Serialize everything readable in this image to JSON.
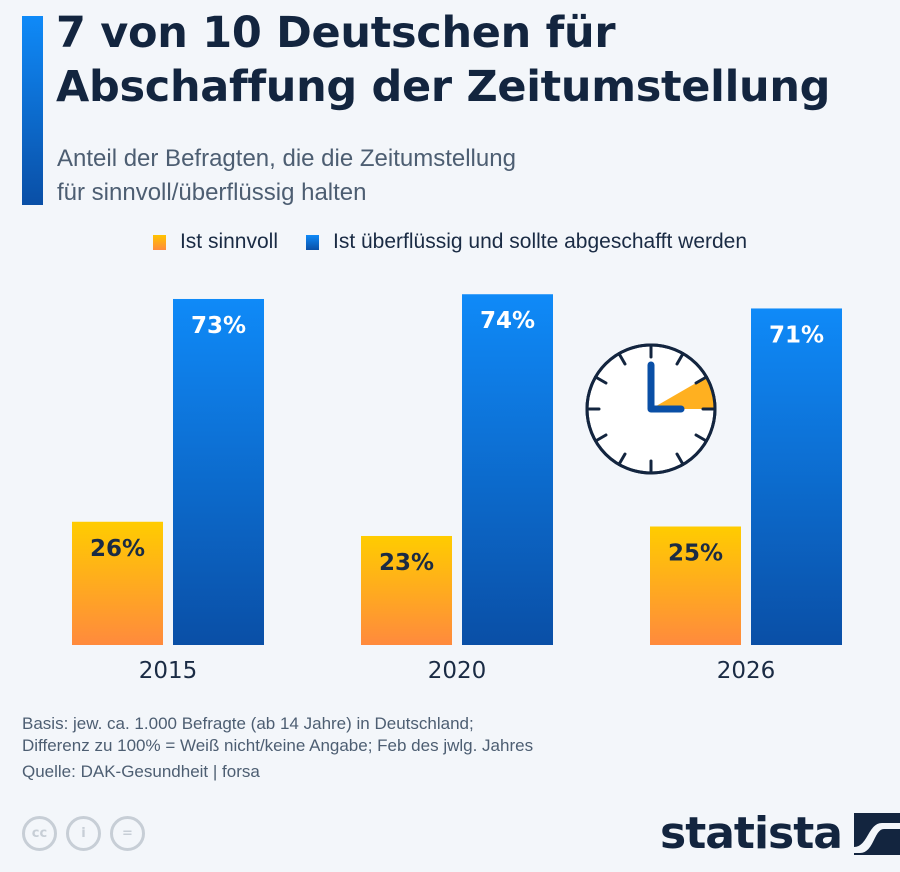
{
  "header": {
    "title_lines": [
      "7 von 10 Deutschen für",
      "Abschaffung der Zeitumstellung"
    ],
    "subtitle_lines": [
      "Anteil der Befragten, die die Zeitumstellung",
      "für sinnvoll/überflüssig halten"
    ]
  },
  "legend": [
    {
      "label": "Ist sinnvoll",
      "color": "#ffb020"
    },
    {
      "label": "Ist überflüssig und sollte abgeschafft werden",
      "color": "#0a6fd6"
    }
  ],
  "chart_data": {
    "type": "bar",
    "title": "7 von 10 Deutschen für Abschaffung der Zeitumstellung",
    "subtitle": "Anteil der Befragten, die die Zeitumstellung für sinnvoll/überflüssig halten",
    "categories": [
      "2015",
      "2020",
      "2026"
    ],
    "series": [
      {
        "name": "Ist sinnvoll",
        "values": [
          26,
          23,
          25
        ],
        "labels": [
          "26%",
          "23%",
          "25%"
        ],
        "color_top": "#ffcc00",
        "color_bottom": "#ff8a3d",
        "label_color": "#1a2b44"
      },
      {
        "name": "Ist überflüssig und sollte abgeschafft werden",
        "values": [
          73,
          74,
          71
        ],
        "labels": [
          "73%",
          "74%",
          "71%"
        ],
        "color_top": "#0f8af8",
        "color_bottom": "#0a4fa6",
        "label_color": "#ffffff"
      }
    ],
    "xlabel": "",
    "ylabel": "",
    "ylim": [
      0,
      100
    ],
    "grid": false,
    "legend_position": "top-center",
    "unit": "%"
  },
  "clock_icon": {
    "name": "clock-icon",
    "hand_color": "#0a4fa6",
    "wedge_color": "#ffb020"
  },
  "footer": {
    "notes": [
      "Basis: jew. ca. 1.000 Befragte (ab 14 Jahre) in Deutschland;",
      "Differenz zu 100% = Weiß nicht/keine Angabe; Feb des jwlg. Jahres"
    ],
    "source": "Quelle: DAK-Gesundheit | forsa",
    "license_icons": [
      "cc",
      "i",
      "="
    ],
    "brand": "statista"
  }
}
